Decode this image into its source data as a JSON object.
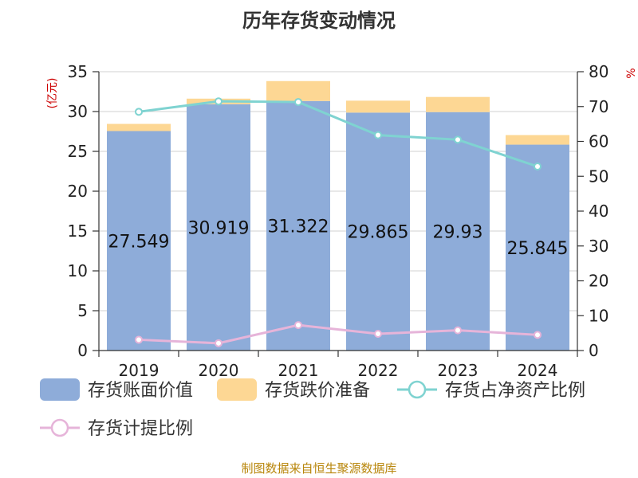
{
  "title": "历年存货变动情况",
  "source": "制图数据来自恒生聚源数据库",
  "chart_data": {
    "type": "bar",
    "categories": [
      "2019",
      "2020",
      "2021",
      "2022",
      "2023",
      "2024"
    ],
    "stacked": true,
    "y_left": {
      "label": "(亿元)",
      "ylim": [
        0,
        35
      ],
      "ticks": [
        0,
        5,
        10,
        15,
        20,
        25,
        30,
        35
      ]
    },
    "y_right": {
      "label": "%",
      "ylim": [
        0,
        80
      ],
      "ticks": [
        0,
        10,
        20,
        30,
        40,
        50,
        60,
        70,
        80
      ]
    },
    "grid": true,
    "legend_position": "bottom",
    "series": [
      {
        "name": "存货账面价值",
        "type": "bar",
        "axis": "left",
        "color": "#8eacd9",
        "values": [
          27.549,
          30.919,
          31.322,
          29.865,
          29.93,
          25.845
        ],
        "labels": [
          "27.549",
          "30.919",
          "31.322",
          "29.865",
          "29.93",
          "25.845"
        ]
      },
      {
        "name": "存货跌价准备",
        "type": "bar",
        "axis": "left",
        "color": "#fdd794",
        "values": [
          0.9,
          0.7,
          2.5,
          1.5,
          1.9,
          1.2
        ]
      },
      {
        "name": "存货占净资产比例",
        "type": "line",
        "axis": "right",
        "color": "#7fd3d1",
        "values": [
          68.5,
          71.5,
          71.3,
          61.8,
          60.5,
          52.8
        ]
      },
      {
        "name": "存货计提比例",
        "type": "line",
        "axis": "right",
        "color": "#e6b4d9",
        "values": [
          3.1,
          2.1,
          7.3,
          4.8,
          5.8,
          4.5
        ]
      }
    ]
  }
}
